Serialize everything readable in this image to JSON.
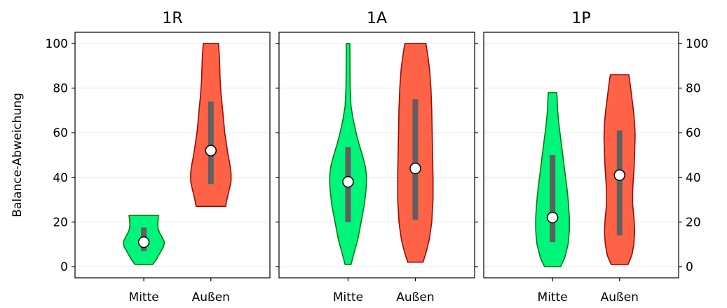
{
  "chart_data": {
    "type": "violin",
    "ylabel": "Balance-Abweichung",
    "ylim": [
      -5,
      105
    ],
    "yticks": [
      0,
      20,
      40,
      60,
      80,
      100
    ],
    "grid": "horizontal",
    "categories": [
      "Mitte",
      "Außen"
    ],
    "colors": {
      "Mitte": {
        "fill": "#00f57a",
        "stroke": "#0a7a10"
      },
      "Außen": {
        "fill": "#ff6347",
        "stroke": "#9a0a0a"
      }
    },
    "panels": [
      {
        "title": "1R",
        "violins": [
          {
            "category": "Mitte",
            "min": 1,
            "max": 23,
            "q1": 7,
            "q3": 17.5,
            "median": 11,
            "profile": [
              [
                1,
                0.42
              ],
              [
                3,
                0.58
              ],
              [
                5,
                0.7
              ],
              [
                7,
                0.82
              ],
              [
                9,
                0.94
              ],
              [
                11,
                0.98
              ],
              [
                13,
                0.88
              ],
              [
                15,
                0.76
              ],
              [
                17,
                0.68
              ],
              [
                19,
                0.66
              ],
              [
                21,
                0.68
              ],
              [
                23,
                0.7
              ]
            ]
          },
          {
            "category": "Außen",
            "min": 27,
            "max": 100,
            "q1": 37,
            "q3": 74,
            "median": 52,
            "profile": [
              [
                27,
                0.7
              ],
              [
                30,
                0.76
              ],
              [
                34,
                0.86
              ],
              [
                38,
                0.96
              ],
              [
                42,
                0.96
              ],
              [
                46,
                0.9
              ],
              [
                50,
                0.82
              ],
              [
                55,
                0.74
              ],
              [
                60,
                0.66
              ],
              [
                66,
                0.6
              ],
              [
                72,
                0.54
              ],
              [
                78,
                0.48
              ],
              [
                84,
                0.44
              ],
              [
                90,
                0.42
              ],
              [
                95,
                0.4
              ],
              [
                100,
                0.36
              ]
            ]
          }
        ]
      },
      {
        "title": "1A",
        "violins": [
          {
            "category": "Mitte",
            "min": 1,
            "max": 100,
            "q1": 20,
            "q3": 53.5,
            "median": 38,
            "profile": [
              [
                1,
                0.14
              ],
              [
                6,
                0.28
              ],
              [
                12,
                0.46
              ],
              [
                20,
                0.62
              ],
              [
                28,
                0.78
              ],
              [
                35,
                0.86
              ],
              [
                40,
                0.88
              ],
              [
                45,
                0.82
              ],
              [
                50,
                0.68
              ],
              [
                55,
                0.52
              ],
              [
                60,
                0.38
              ],
              [
                66,
                0.24
              ],
              [
                72,
                0.14
              ],
              [
                80,
                0.1
              ],
              [
                88,
                0.09
              ],
              [
                95,
                0.09
              ],
              [
                100,
                0.08
              ]
            ]
          },
          {
            "category": "Außen",
            "min": 2,
            "max": 100,
            "q1": 21,
            "q3": 75,
            "median": 44,
            "profile": [
              [
                2,
                0.36
              ],
              [
                6,
                0.5
              ],
              [
                12,
                0.66
              ],
              [
                20,
                0.78
              ],
              [
                30,
                0.84
              ],
              [
                40,
                0.84
              ],
              [
                50,
                0.82
              ],
              [
                60,
                0.8
              ],
              [
                70,
                0.78
              ],
              [
                80,
                0.74
              ],
              [
                88,
                0.68
              ],
              [
                94,
                0.6
              ],
              [
                100,
                0.5
              ]
            ]
          }
        ]
      },
      {
        "title": "1P",
        "violins": [
          {
            "category": "Mitte",
            "min": 0,
            "max": 78,
            "q1": 11,
            "q3": 50,
            "median": 22,
            "profile": [
              [
                0,
                0.38
              ],
              [
                4,
                0.58
              ],
              [
                10,
                0.74
              ],
              [
                16,
                0.8
              ],
              [
                22,
                0.8
              ],
              [
                28,
                0.76
              ],
              [
                34,
                0.7
              ],
              [
                40,
                0.62
              ],
              [
                46,
                0.54
              ],
              [
                52,
                0.46
              ],
              [
                58,
                0.38
              ],
              [
                64,
                0.3
              ],
              [
                70,
                0.24
              ],
              [
                75,
                0.22
              ],
              [
                78,
                0.2
              ]
            ]
          },
          {
            "category": "Außen",
            "min": 1,
            "max": 86,
            "q1": 14,
            "q3": 61,
            "median": 41,
            "profile": [
              [
                1,
                0.4
              ],
              [
                5,
                0.58
              ],
              [
                10,
                0.68
              ],
              [
                16,
                0.72
              ],
              [
                22,
                0.68
              ],
              [
                28,
                0.62
              ],
              [
                34,
                0.62
              ],
              [
                40,
                0.66
              ],
              [
                46,
                0.7
              ],
              [
                52,
                0.72
              ],
              [
                58,
                0.74
              ],
              [
                64,
                0.72
              ],
              [
                70,
                0.66
              ],
              [
                76,
                0.58
              ],
              [
                82,
                0.5
              ],
              [
                86,
                0.44
              ]
            ]
          }
        ]
      }
    ]
  }
}
